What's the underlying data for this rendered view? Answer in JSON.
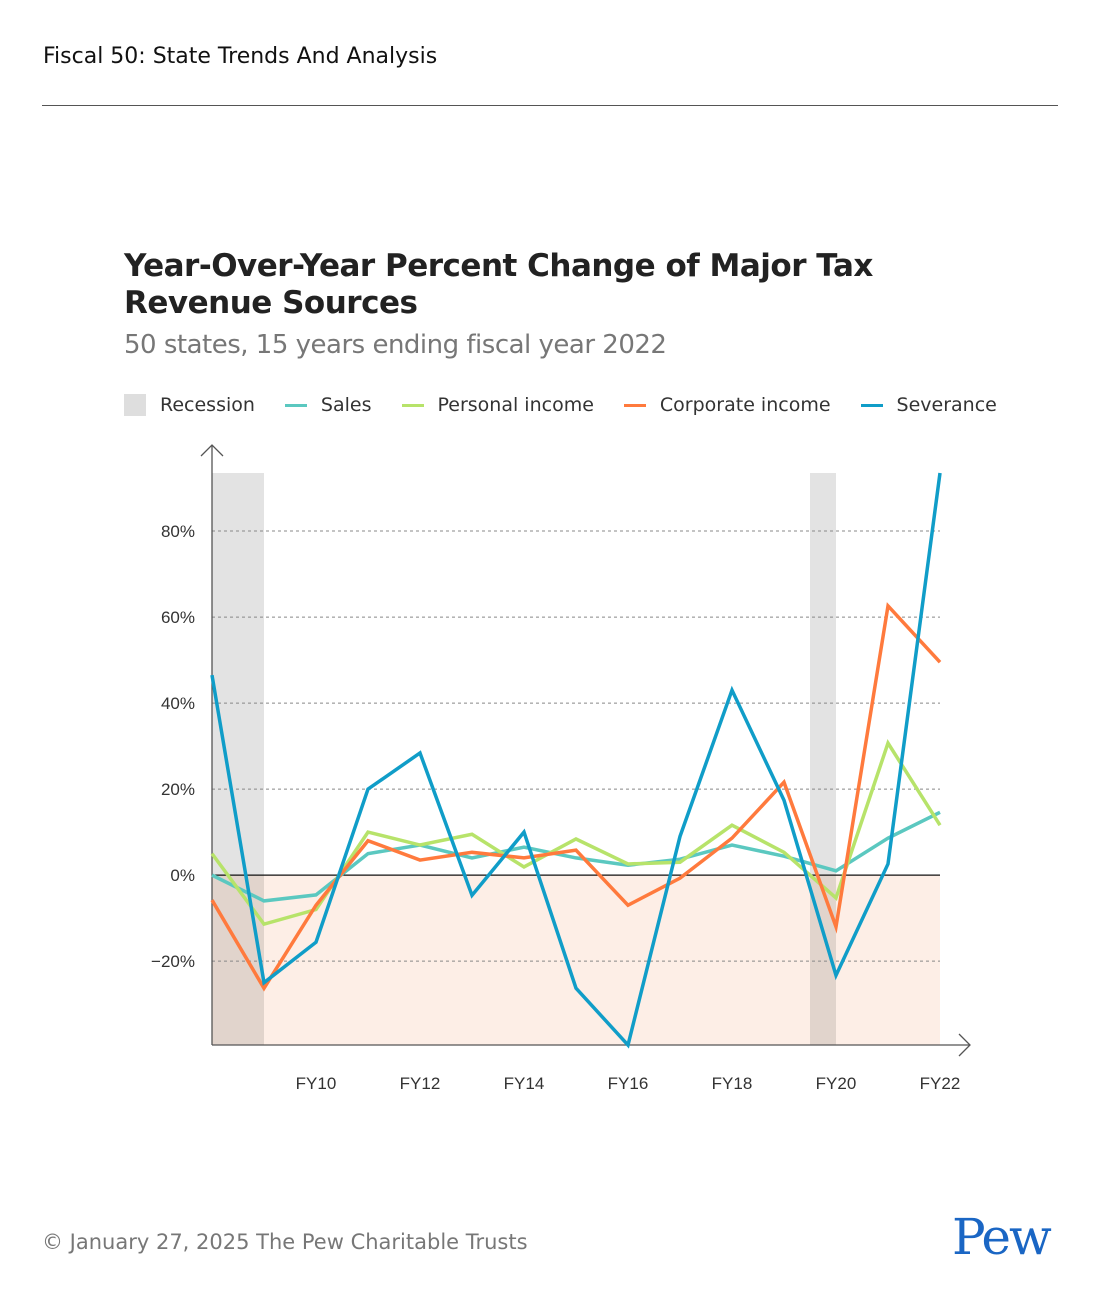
{
  "header": {
    "title": "Fiscal 50: State Trends And Analysis"
  },
  "footer": {
    "copyright": "© January 27, 2025 The Pew Charitable Trusts",
    "logo": "Pew"
  },
  "colors": {
    "recession": "#dedede",
    "negative_zone": "#fdeee6",
    "Sales": "#5bc8c0",
    "Personal income": "#b7e36a",
    "Corporate income": "#ff7a3d",
    "Severance": "#109dc8",
    "logo": "#1a66c4"
  },
  "chart_data": {
    "type": "line",
    "title": "Year-Over-Year Percent Change of Major Tax Revenue Sources",
    "subtitle": "50 states, 15 years ending fiscal year 2022",
    "xlabel": "",
    "ylabel": "",
    "x": [
      2008,
      2009,
      2010,
      2011,
      2012,
      2013,
      2014,
      2015,
      2016,
      2017,
      2018,
      2019,
      2020,
      2021,
      2022
    ],
    "x_tick_labels": [
      {
        "x": 2010,
        "label": "FY10"
      },
      {
        "x": 2012,
        "label": "FY12"
      },
      {
        "x": 2014,
        "label": "FY14"
      },
      {
        "x": 2016,
        "label": "FY16"
      },
      {
        "x": 2018,
        "label": "FY18"
      },
      {
        "x": 2020,
        "label": "FY20"
      },
      {
        "x": 2022,
        "label": "FY22"
      }
    ],
    "y_ticks": [
      {
        "v": 80,
        "label": "80%"
      },
      {
        "v": 60,
        "label": "60%"
      },
      {
        "v": 40,
        "label": "40%"
      },
      {
        "v": 20,
        "label": "20%"
      },
      {
        "v": 0,
        "label": "0%"
      },
      {
        "v": -20,
        "label": "−20%"
      }
    ],
    "ylim": [
      -39.5,
      93.5
    ],
    "xlim": [
      2008,
      2022
    ],
    "grid": "horizontal dashed",
    "legend_placement": "top",
    "recession_label": "Recession",
    "recessions": [
      [
        2008,
        2009
      ],
      [
        2019.5,
        2020
      ]
    ],
    "series": [
      {
        "name": "Sales",
        "values": [
          0,
          -6,
          -4.6,
          5,
          7,
          4,
          6.5,
          4,
          2.3,
          3.7,
          7,
          4.4,
          1,
          8.6,
          14.6
        ]
      },
      {
        "name": "Personal income",
        "values": [
          5,
          -11.4,
          -8,
          10,
          7,
          9.5,
          1.9,
          8.4,
          2.6,
          3,
          11.6,
          5.3,
          -5.3,
          30.7,
          11.6
        ]
      },
      {
        "name": "Corporate income",
        "values": [
          -5.8,
          -26.3,
          -7,
          8,
          3.5,
          5.3,
          4,
          5.8,
          -7,
          -0.7,
          8.6,
          21.6,
          -12,
          62.6,
          49.5
        ]
      },
      {
        "name": "Severance",
        "values": [
          46.5,
          -25,
          -15.6,
          20,
          28.4,
          -4.7,
          10,
          -26.3,
          -39.5,
          9,
          43,
          17.4,
          -23.3,
          2.6,
          93.5
        ]
      }
    ]
  }
}
